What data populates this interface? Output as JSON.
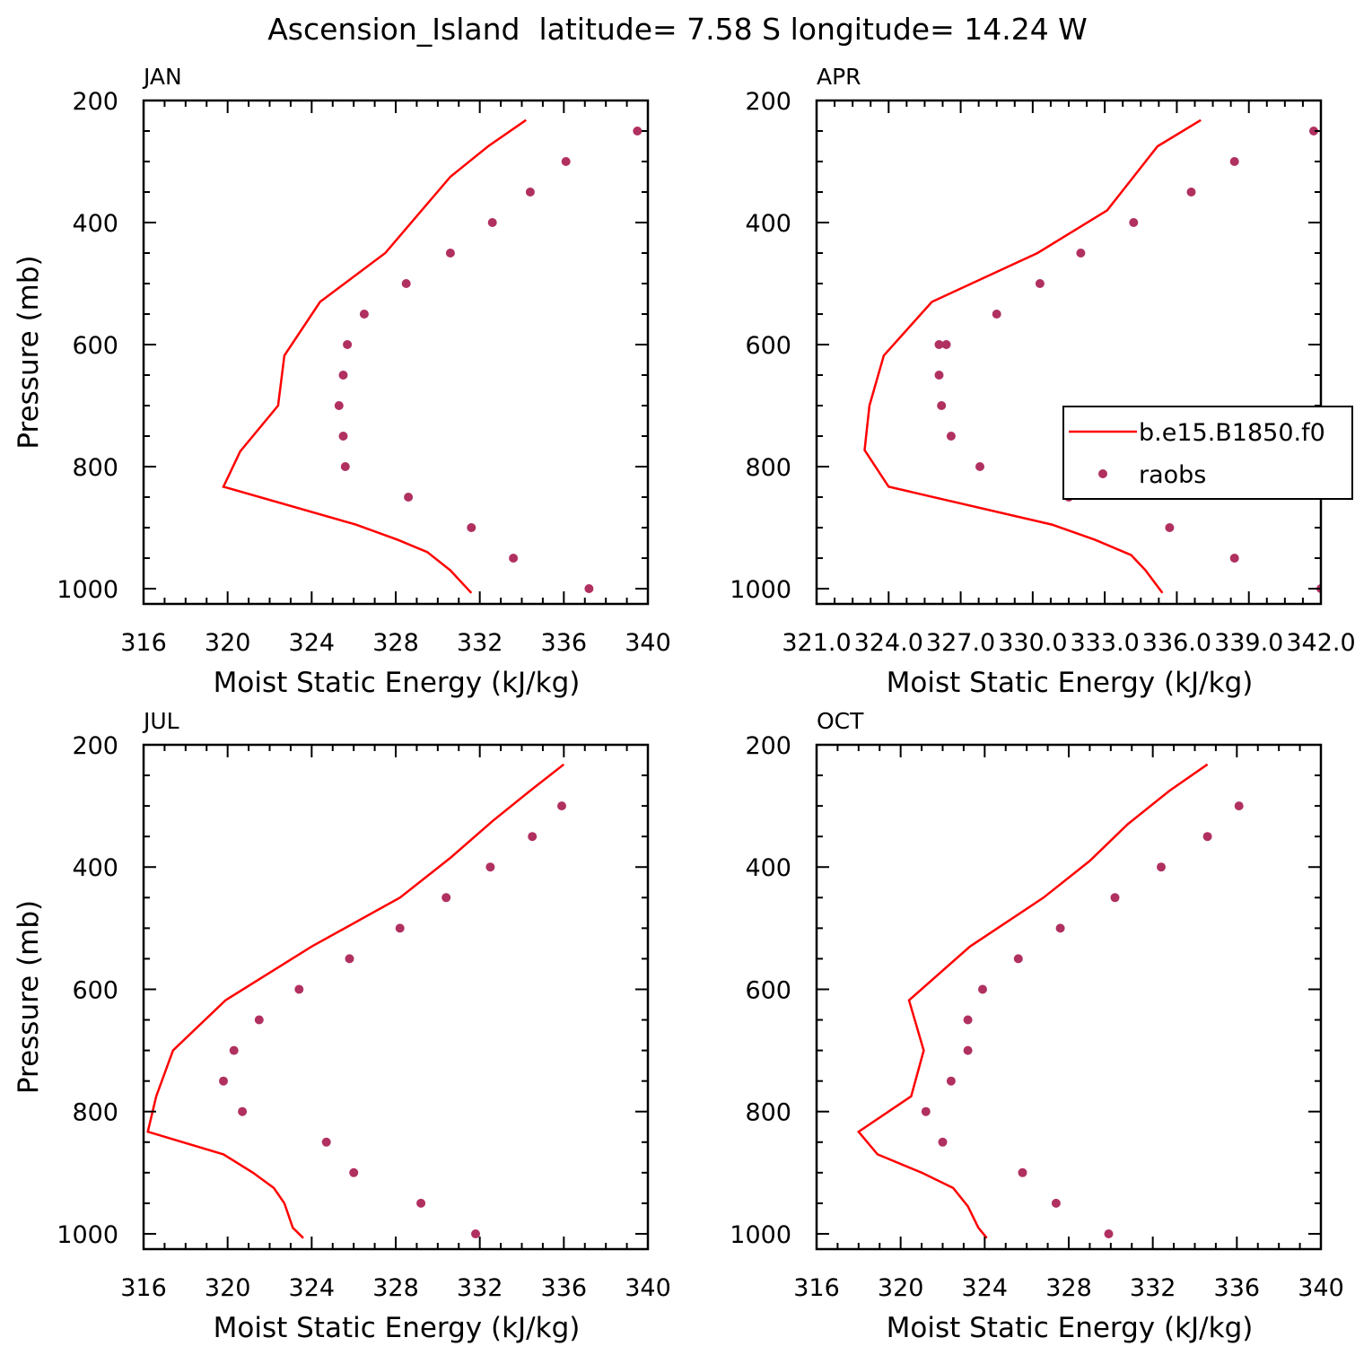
{
  "figure": {
    "title": "Ascension_Island  latitude= 7.58 S longitude= 14.24 W"
  },
  "colors": {
    "model_line": "#ff0000",
    "raobs_marker": "#b03060",
    "frame": "#000000"
  },
  "legend": {
    "panel": 1,
    "entries": [
      "b.e15.B1850.f0",
      "raobs"
    ]
  },
  "chart_data": [
    {
      "type": "line",
      "panel_label": "JAN",
      "xlabel": "Moist Static Energy (kJ/kg)",
      "ylabel": "Pressure (mb)",
      "xlim": [
        316,
        340
      ],
      "xticks": [
        316,
        320,
        324,
        328,
        332,
        336,
        340
      ],
      "xtick_labels": [
        "316",
        "320",
        "324",
        "328",
        "332",
        "336",
        "340"
      ],
      "ylim": [
        1025,
        200
      ],
      "yticks": [
        200,
        400,
        600,
        800,
        1000
      ],
      "ytick_labels": [
        "200",
        "400",
        "600",
        "800",
        "1000"
      ],
      "series": [
        {
          "name": "b.e15.B1850.f0",
          "kind": "line",
          "x": [
            331.6,
            330.6,
            329.5,
            328.1,
            326.1,
            319.8,
            320.6,
            322.4,
            322.7,
            324.4,
            327.5,
            330.6,
            332.4,
            334.2
          ],
          "y": [
            1007,
            970,
            940,
            920,
            895,
            833,
            775,
            700,
            618,
            530,
            450,
            325,
            275,
            232
          ]
        },
        {
          "name": "raobs",
          "kind": "scatter",
          "x": [
            337.2,
            333.6,
            331.6,
            328.6,
            325.6,
            325.5,
            325.3,
            325.5,
            325.7,
            326.5,
            328.5,
            330.6,
            332.6,
            334.4,
            336.1,
            339.5
          ],
          "y": [
            1000,
            950,
            900,
            850,
            800,
            750,
            700,
            650,
            600,
            550,
            500,
            450,
            400,
            350,
            300,
            250
          ]
        }
      ]
    },
    {
      "type": "line",
      "panel_label": "APR",
      "xlabel": "Moist Static Energy (kJ/kg)",
      "ylabel": "",
      "xlim": [
        321,
        342
      ],
      "xticks": [
        321,
        324,
        327,
        330,
        333,
        336,
        339,
        342
      ],
      "xtick_labels": [
        "321.0",
        "324.0",
        "327.0",
        "330.0",
        "333.0",
        "336.0",
        "339.0",
        "342.0"
      ],
      "ylim": [
        1025,
        200
      ],
      "yticks": [
        200,
        400,
        600,
        800,
        1000
      ],
      "ytick_labels": [
        "200",
        "400",
        "600",
        "800",
        "1000"
      ],
      "series": [
        {
          "name": "b.e15.B1850.f0",
          "kind": "line",
          "x": [
            335.4,
            334.7,
            334.1,
            332.6,
            330.8,
            324.0,
            323.0,
            323.2,
            323.8,
            325.8,
            330.2,
            333.1,
            335.2,
            337.0
          ],
          "y": [
            1007,
            970,
            945,
            920,
            895,
            833,
            773,
            700,
            618,
            530,
            450,
            380,
            275,
            232
          ]
        },
        {
          "name": "raobs",
          "kind": "scatter",
          "x": [
            342.0,
            338.4,
            335.7,
            331.5,
            327.8,
            326.6,
            326.2,
            326.1,
            326.1,
            326.4,
            328.5,
            330.3,
            332.0,
            334.2,
            336.6,
            338.4,
            341.7
          ],
          "y": [
            1000,
            950,
            900,
            850,
            800,
            750,
            700,
            650,
            600,
            600,
            550,
            500,
            450,
            400,
            350,
            300,
            250
          ]
        }
      ]
    },
    {
      "type": "line",
      "panel_label": "JUL",
      "xlabel": "Moist Static Energy (kJ/kg)",
      "ylabel": "Pressure (mb)",
      "xlim": [
        316,
        340
      ],
      "xticks": [
        316,
        320,
        324,
        328,
        332,
        336,
        340
      ],
      "xtick_labels": [
        "316",
        "320",
        "324",
        "328",
        "332",
        "336",
        "340"
      ],
      "ylim": [
        1025,
        200
      ],
      "yticks": [
        200,
        400,
        600,
        800,
        1000
      ],
      "ytick_labels": [
        "200",
        "400",
        "600",
        "800",
        "1000"
      ],
      "series": [
        {
          "name": "b.e15.B1850.f0",
          "kind": "line",
          "x": [
            323.6,
            323.1,
            322.7,
            322.2,
            321.2,
            319.8,
            316.2,
            316.6,
            317.4,
            319.9,
            324.0,
            328.2,
            330.6,
            332.6,
            334.4,
            336.0
          ],
          "y": [
            1007,
            990,
            950,
            925,
            900,
            870,
            833,
            775,
            700,
            618,
            530,
            450,
            385,
            325,
            275,
            232
          ]
        },
        {
          "name": "raobs",
          "kind": "scatter",
          "x": [
            331.8,
            329.2,
            326.0,
            324.7,
            320.7,
            319.8,
            320.3,
            321.5,
            323.4,
            325.8,
            328.2,
            330.4,
            332.5,
            334.5,
            335.9
          ],
          "y": [
            1000,
            950,
            900,
            850,
            800,
            750,
            700,
            650,
            600,
            550,
            500,
            450,
            400,
            350,
            300
          ]
        }
      ]
    },
    {
      "type": "line",
      "panel_label": "OCT",
      "xlabel": "Moist Static Energy (kJ/kg)",
      "ylabel": "",
      "xlim": [
        316,
        340
      ],
      "xticks": [
        316,
        320,
        324,
        328,
        332,
        336,
        340
      ],
      "xtick_labels": [
        "316",
        "320",
        "324",
        "328",
        "332",
        "336",
        "340"
      ],
      "ylim": [
        1025,
        200
      ],
      "yticks": [
        200,
        400,
        600,
        800,
        1000
      ],
      "ytick_labels": [
        "200",
        "400",
        "600",
        "800",
        "1000"
      ],
      "series": [
        {
          "name": "b.e15.B1850.f0",
          "kind": "line",
          "x": [
            324.1,
            323.7,
            323.2,
            322.5,
            321.0,
            318.9,
            318.0,
            320.5,
            321.1,
            320.4,
            323.3,
            326.8,
            329.0,
            330.8,
            332.8,
            334.6
          ],
          "y": [
            1007,
            990,
            955,
            925,
            900,
            870,
            833,
            775,
            700,
            618,
            530,
            450,
            390,
            330,
            275,
            232
          ]
        },
        {
          "name": "raobs",
          "kind": "scatter",
          "x": [
            329.9,
            327.4,
            325.8,
            322.0,
            321.2,
            322.4,
            323.2,
            323.2,
            323.9,
            325.6,
            327.6,
            330.2,
            332.4,
            334.6,
            336.1
          ],
          "y": [
            1000,
            950,
            900,
            850,
            800,
            750,
            700,
            650,
            600,
            550,
            500,
            450,
            400,
            350,
            300
          ]
        }
      ]
    }
  ]
}
